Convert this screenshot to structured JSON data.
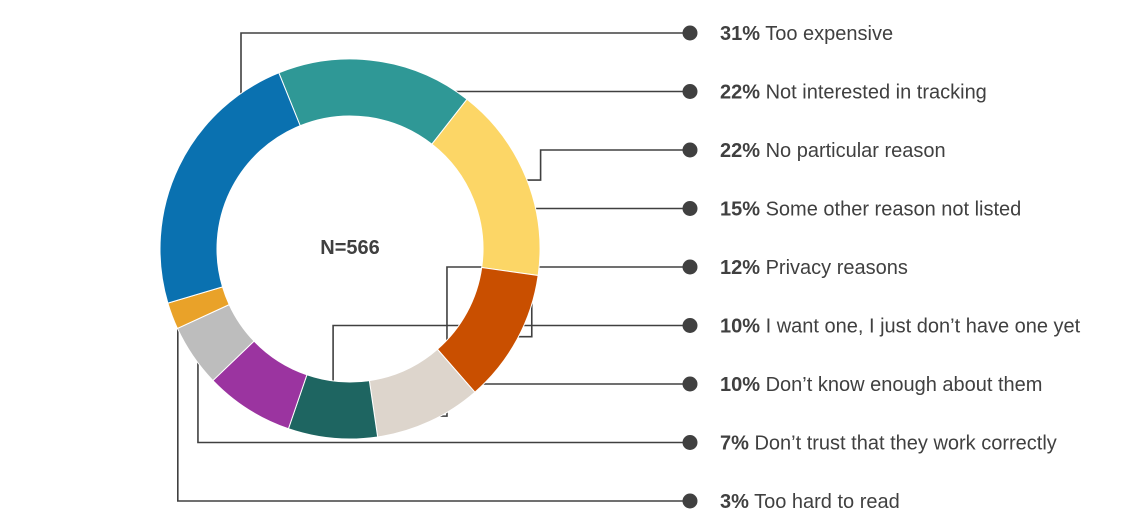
{
  "chart_data": {
    "type": "pie",
    "center_label": "N=566",
    "slices": [
      {
        "pct": "31%",
        "label": "Too expensive",
        "value": 31,
        "color": "#0A71B0"
      },
      {
        "pct": "22%",
        "label": "Not interested in tracking",
        "value": 22,
        "color": "#2F9896"
      },
      {
        "pct": "22%",
        "label": "No particular reason",
        "value": 22,
        "color": "#FCD666"
      },
      {
        "pct": "15%",
        "label": "Some other reason not listed",
        "value": 15,
        "color": "#C94F00"
      },
      {
        "pct": "12%",
        "label": "Privacy reasons",
        "value": 12,
        "color": "#DDD5CC"
      },
      {
        "pct": "10%",
        "label": "I want one, I just don’t have one yet",
        "value": 10,
        "color": "#1E6561"
      },
      {
        "pct": "10%",
        "label": "Don’t know enough about them",
        "value": 10,
        "color": "#9B34A0"
      },
      {
        "pct": "7%",
        "label": "Don’t trust that they work correctly",
        "value": 7,
        "color": "#BDBDBD"
      },
      {
        "pct": "3%",
        "label": "Too hard to read",
        "value": 3,
        "color": "#E9A229"
      }
    ]
  }
}
